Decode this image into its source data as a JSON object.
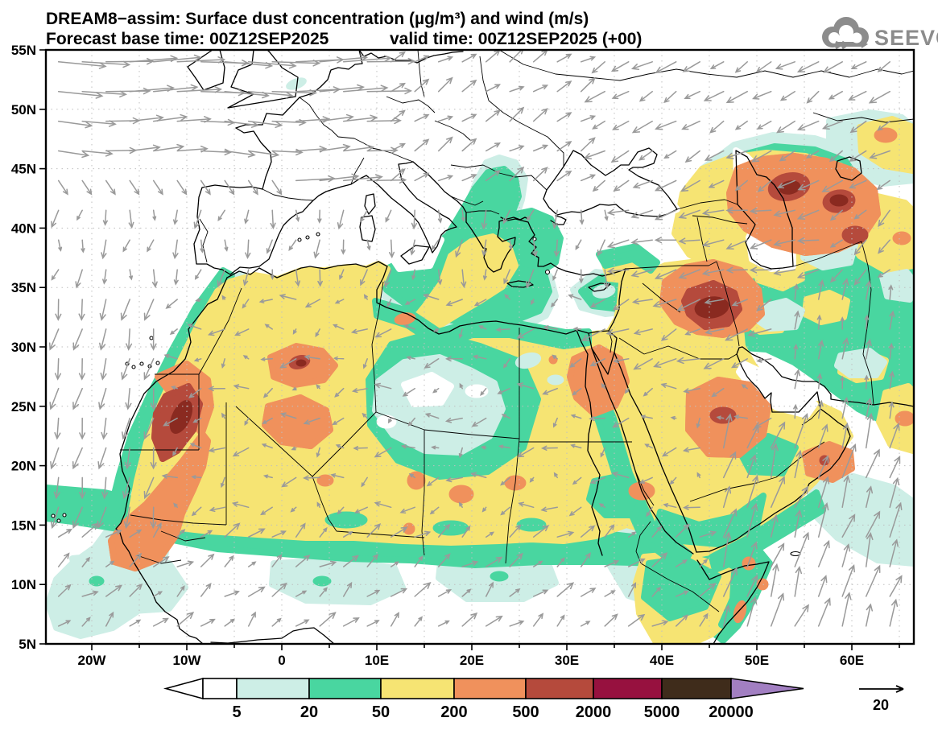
{
  "header": {
    "title_line1": "DREAM8−assim: Surface dust concentration (µg/m³) and wind (m/s)",
    "title_line2_left": "Forecast base time: 00Z12SEP2025",
    "title_line2_right": "valid time: 00Z12SEP2025 (+00)",
    "model_name": "DREAM8-assim",
    "variable": "Surface dust concentration",
    "concentration_units": "µg/m³",
    "wind_units": "m/s",
    "forecast_base_time": "00Z12SEP2025",
    "valid_time": "00Z12SEP2025",
    "lead_time": "+00"
  },
  "logo": {
    "text": "SEEVCCC",
    "icon": "cloud-arrow-icon",
    "color": "#8c8c8c"
  },
  "axes": {
    "lat_labels": [
      "55N",
      "50N",
      "45N",
      "40N",
      "35N",
      "30N",
      "25N",
      "20N",
      "15N",
      "10N",
      "5N"
    ],
    "lat_values": [
      55,
      50,
      45,
      40,
      35,
      30,
      25,
      20,
      15,
      10,
      5
    ],
    "lon_labels": [
      "20W",
      "10W",
      "0",
      "10E",
      "20E",
      "30E",
      "40E",
      "50E",
      "60E"
    ],
    "lon_values": [
      -20,
      -10,
      0,
      10,
      20,
      30,
      40,
      50,
      60
    ],
    "lon_minor_step": 5,
    "extent": {
      "lon_min": -24.8,
      "lon_max": 66.5,
      "lat_min": 5,
      "lat_max": 55
    },
    "grid_step_deg": 5
  },
  "legend": {
    "tick_labels": [
      "5",
      "20",
      "50",
      "200",
      "500",
      "2000",
      "5000",
      "20000"
    ],
    "levels": [
      5,
      20,
      50,
      200,
      500,
      2000,
      5000,
      20000
    ],
    "colors": {
      "below_5": "#ffffff",
      "5_20": "#cdeee6",
      "20_50": "#49d6a0",
      "50_200": "#f6e473",
      "200_500": "#f0915c",
      "500_2000": "#b54a3c",
      "2000_5000": "#97113f",
      "5000_20000": "#3f2c1b",
      "above_20000": "#a27fc2"
    }
  },
  "wind_reference": {
    "label": "20",
    "speed_ms": 20,
    "arrow_color": "#9a9a9a"
  },
  "map": {
    "type": "filled-contour map with wind vectors",
    "region": "North Africa, Europe, Middle East",
    "hotspots": [
      {
        "name": "Western Sahara / Mauritania coast",
        "level": "500-2000"
      },
      {
        "name": "Central Algeria",
        "level": "500-2000"
      },
      {
        "name": "Eastern Egypt",
        "level": "200-500"
      },
      {
        "name": "Central Iraq",
        "level": "500-2000"
      },
      {
        "name": "Caucasus / eastern Anatolia",
        "level": "500-2000"
      },
      {
        "name": "Central Saudi Arabia",
        "level": "200-500"
      },
      {
        "name": "Oman coast",
        "level": "200-500"
      },
      {
        "name": "Somalia coast",
        "level": "200-500"
      }
    ]
  }
}
